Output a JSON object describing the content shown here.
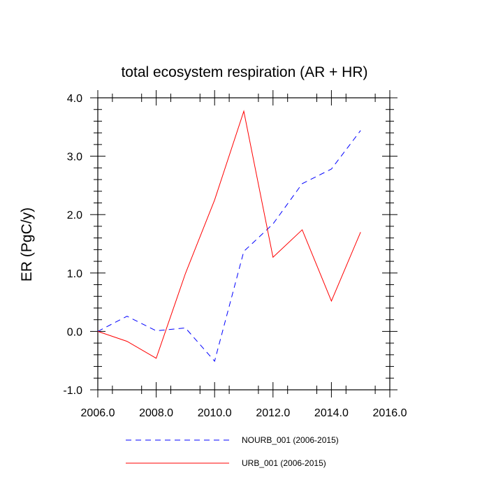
{
  "chart_data": {
    "type": "line",
    "title": "total ecosystem respiration (AR + HR)",
    "xlabel": "",
    "ylabel": "ER  (PgC/y)",
    "xlim": [
      2006,
      2016
    ],
    "ylim": [
      -1,
      4
    ],
    "xticks": [
      2006,
      2008,
      2010,
      2012,
      2014,
      2016
    ],
    "xtick_labels": [
      "2006.0",
      "2008.0",
      "2010.0",
      "2012.0",
      "2014.0",
      "2016.0"
    ],
    "yticks": [
      -1,
      0,
      1,
      2,
      3,
      4
    ],
    "ytick_labels": [
      "-1.0",
      "0.0",
      "1.0",
      "2.0",
      "3.0",
      "4.0"
    ],
    "grid": false,
    "legend_position": "bottom",
    "x": [
      2006,
      2007,
      2008,
      2009,
      2010,
      2011,
      2012,
      2013,
      2014,
      2015
    ],
    "series": [
      {
        "name": "NOURB_001 (2006-2015)",
        "color": "#0000ff",
        "dash": "dashed",
        "values": [
          0.0,
          0.26,
          0.01,
          0.06,
          -0.51,
          1.37,
          1.84,
          2.53,
          2.78,
          3.44
        ]
      },
      {
        "name": "URB_001 (2006-2015)",
        "color": "#ff0000",
        "dash": "solid",
        "values": [
          0.0,
          -0.17,
          -0.46,
          0.99,
          2.25,
          3.77,
          1.27,
          1.74,
          0.52,
          1.7
        ]
      }
    ]
  }
}
